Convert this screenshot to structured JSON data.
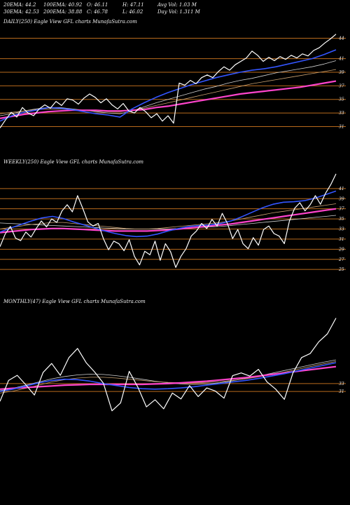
{
  "header": {
    "ema20": "20EMA: 44.2",
    "ema100": "100EMA: 40.92",
    "open": "O: 46.11",
    "high": "H: 47.11",
    "avg_vol": "Avg Vol: 1.03 M",
    "ema30": "30EMA: 42.53",
    "ema200": "200EMA: 38.88",
    "close": "C: 46.78",
    "low": "L: 46.02",
    "day_vol": "Day Vol: 1.311 M"
  },
  "colors": {
    "background": "#000000",
    "price": "#ffffff",
    "ema_fast": "#3355ff",
    "ema_slow": "#ff44cc",
    "ema_mid": "#c8a070",
    "ema_gray": "#cfcfcf",
    "level_line": "#b86a1c"
  },
  "chart_data": [
    {
      "type": "line",
      "title": "DAILY(250) Eagle  View  GFL  charts MunafaSutra.com",
      "ylim": [
        29.5,
        45.5
      ],
      "tick_labels": [
        "44",
        "41",
        "39",
        "37",
        "35",
        "33",
        "31"
      ],
      "levels": [
        44,
        41,
        39,
        37,
        35,
        33,
        31
      ],
      "series": [
        {
          "role": "price",
          "values": [
            30.8,
            32.0,
            33.1,
            32.4,
            33.8,
            33.0,
            32.6,
            33.6,
            34.2,
            33.7,
            34.7,
            34.1,
            35.1,
            34.9,
            34.3,
            35.2,
            35.8,
            35.3,
            34.5,
            35.1,
            34.2,
            33.6,
            34.4,
            33.3,
            33.0,
            33.8,
            33.2,
            32.3,
            32.9,
            31.8,
            32.6,
            31.5,
            37.4,
            37.1,
            37.8,
            37.3,
            38.2,
            38.6,
            38.2,
            39.1,
            39.8,
            39.3,
            40.1,
            40.6,
            41.1,
            42.1,
            41.5,
            40.6,
            41.2,
            40.7,
            41.3,
            40.9,
            41.5,
            41.1,
            41.7,
            41.4,
            42.2,
            42.6,
            43.3,
            43.9,
            44.6
          ]
        },
        {
          "role": "ema_fast",
          "values": [
            31.8,
            32.6,
            33.1,
            33.4,
            33.8,
            33.7,
            33.5,
            33.2,
            32.9,
            32.7,
            32.4,
            33.6,
            34.5,
            35.3,
            36.0,
            36.6,
            37.2,
            37.7,
            38.2,
            38.6,
            39.0,
            39.3,
            39.5,
            39.8,
            40.2,
            40.6,
            41.0,
            41.6,
            42.3
          ]
        },
        {
          "role": "ema_gray",
          "values": [
            32.6,
            32.9,
            33.3,
            33.6,
            33.8,
            33.8,
            33.6,
            33.4,
            33.2,
            33.0,
            32.9,
            33.3,
            33.9,
            34.5,
            35.0,
            35.5,
            36.0,
            36.5,
            36.9,
            37.4,
            37.8,
            38.1,
            38.5,
            38.9,
            39.2,
            39.5,
            39.8,
            40.2,
            40.7
          ]
        },
        {
          "role": "ema_mid",
          "values": [
            32.9,
            33.1,
            33.3,
            33.5,
            33.6,
            33.6,
            33.5,
            33.4,
            33.3,
            33.2,
            33.2,
            33.4,
            33.7,
            34.1,
            34.5,
            34.9,
            35.3,
            35.7,
            36.1,
            36.5,
            36.9,
            37.3,
            37.6,
            37.9,
            38.2,
            38.5,
            38.8,
            39.1,
            39.4
          ]
        },
        {
          "role": "ema_slow",
          "values": [
            32.2,
            32.5,
            32.8,
            33.0,
            33.2,
            33.3,
            33.4,
            33.4,
            33.4,
            33.3,
            33.3,
            33.4,
            33.5,
            33.8,
            34.0,
            34.3,
            34.6,
            34.9,
            35.2,
            35.5,
            35.8,
            36.0,
            36.2,
            36.4,
            36.6,
            36.8,
            37.1,
            37.4,
            37.7
          ]
        }
      ]
    },
    {
      "type": "line",
      "title": "WEEKLY(250) Eagle  View  GFL  charts MunafaSutra.com",
      "ylim": [
        23.5,
        45
      ],
      "tick_labels": [
        "41",
        "39",
        "37",
        "35",
        "33",
        "31",
        "29",
        "27",
        "25"
      ],
      "levels": [
        41,
        39,
        37,
        35,
        33,
        31,
        29,
        27,
        25
      ],
      "series": [
        {
          "role": "price",
          "values": [
            29.5,
            32.0,
            33.5,
            31.2,
            30.7,
            32.4,
            31.4,
            33.1,
            34.6,
            33.4,
            35.0,
            34.3,
            36.6,
            37.8,
            36.4,
            39.6,
            37.1,
            34.4,
            33.6,
            34.1,
            31.1,
            28.9,
            30.6,
            30.1,
            28.7,
            30.9,
            27.6,
            25.9,
            28.6,
            27.9,
            30.6,
            26.8,
            30.1,
            28.5,
            25.4,
            27.6,
            29.1,
            31.6,
            32.6,
            34.1,
            33.1,
            34.9,
            33.6,
            36.1,
            34.1,
            31.1,
            32.9,
            30.1,
            29.1,
            31.3,
            29.8,
            32.9,
            33.6,
            32.1,
            31.6,
            30.1,
            34.6,
            37.1,
            38.2,
            36.6,
            37.8,
            39.6,
            37.9,
            40.1,
            41.8,
            43.9
          ]
        },
        {
          "role": "ema_fast",
          "values": [
            32.4,
            33.2,
            33.9,
            34.6,
            35.2,
            35.5,
            35.1,
            34.4,
            33.8,
            33.2,
            32.6,
            32.1,
            31.7,
            31.5,
            31.6,
            32.0,
            32.6,
            33.1,
            33.5,
            33.7,
            33.8,
            34.1,
            34.6,
            35.4,
            36.3,
            37.2,
            37.9,
            38.3,
            38.4,
            38.6,
            39.1,
            39.8,
            40.5
          ]
        },
        {
          "role": "ema_mid",
          "values": [
            33.0,
            33.3,
            33.6,
            33.9,
            34.1,
            34.3,
            34.3,
            34.1,
            33.9,
            33.7,
            33.5,
            33.3,
            33.1,
            33.0,
            33.0,
            33.1,
            33.3,
            33.5,
            33.7,
            33.9,
            34.1,
            34.3,
            34.6,
            35.0,
            35.4,
            35.8,
            36.2,
            36.5,
            36.8,
            37.1,
            37.4,
            37.7,
            38.0
          ]
        },
        {
          "role": "ema_slow",
          "values": [
            32.3,
            32.5,
            32.7,
            32.9,
            33.0,
            33.1,
            33.1,
            33.0,
            32.9,
            32.8,
            32.7,
            32.6,
            32.6,
            32.6,
            32.6,
            32.7,
            32.8,
            33.0,
            33.2,
            33.4,
            33.6,
            33.8,
            34.0,
            34.3,
            34.6,
            34.9,
            35.2,
            35.5,
            35.8,
            36.1,
            36.4,
            36.7,
            37.0
          ]
        },
        {
          "role": "ema_gray",
          "values": [
            34.2,
            34.1,
            34.0,
            33.9,
            33.8,
            33.7,
            33.6,
            33.5,
            33.4,
            33.3,
            33.2,
            33.1,
            33.0,
            33.0,
            33.0,
            33.0,
            33.0,
            33.1,
            33.2,
            33.3,
            33.4,
            33.5,
            33.7,
            33.9,
            34.1,
            34.3,
            34.5,
            34.7,
            34.9,
            35.1,
            35.3,
            35.5,
            35.7
          ]
        }
      ]
    },
    {
      "type": "line",
      "title": "MONTHLY(47) Eagle  View  GFL  charts MunafaSutra.com",
      "ylim": [
        20,
        52
      ],
      "tick_labels": [
        "33",
        "31"
      ],
      "levels": [
        33,
        31
      ],
      "series": [
        {
          "role": "price",
          "values": [
            28.5,
            33.8,
            35.1,
            32.7,
            30.1,
            35.8,
            38.1,
            35.1,
            39.6,
            41.9,
            38.3,
            35.9,
            33.1,
            26.1,
            28.1,
            36.1,
            32.1,
            27.1,
            28.9,
            26.6,
            30.6,
            29.1,
            32.5,
            29.7,
            31.9,
            31.1,
            29.3,
            35.0,
            35.7,
            34.9,
            36.6,
            33.4,
            31.6,
            29.0,
            35.7,
            39.6,
            40.6,
            43.6,
            45.6,
            49.6
          ]
        },
        {
          "role": "ema_fast",
          "values": [
            31.0,
            31.6,
            32.4,
            33.2,
            33.8,
            34.1,
            34.0,
            33.6,
            33.0,
            32.5,
            32.0,
            31.7,
            31.6,
            31.7,
            31.9,
            32.2,
            32.6,
            33.0,
            33.4,
            33.8,
            34.3,
            34.9,
            35.5,
            36.2,
            36.9,
            37.6,
            38.3
          ]
        },
        {
          "role": "ema_mid",
          "values": [
            30.6,
            31.1,
            31.8,
            32.6,
            33.4,
            34.0,
            34.4,
            34.6,
            34.6,
            34.4,
            34.1,
            33.8,
            33.5,
            33.3,
            33.2,
            33.2,
            33.3,
            33.5,
            33.8,
            34.2,
            34.7,
            35.3,
            35.9,
            36.6,
            37.3,
            38.0,
            38.6
          ]
        },
        {
          "role": "ema_gray",
          "values": [
            31.2,
            31.8,
            32.6,
            33.4,
            34.2,
            34.8,
            35.2,
            35.4,
            35.3,
            35.0,
            34.6,
            34.1,
            33.6,
            33.2,
            32.9,
            32.8,
            32.9,
            33.2,
            33.7,
            34.3,
            34.9,
            35.6,
            36.3,
            37.0,
            37.7,
            38.4,
            39.0
          ]
        },
        {
          "role": "ema_slow",
          "values": [
            31.6,
            31.8,
            32.0,
            32.2,
            32.4,
            32.6,
            32.7,
            32.8,
            32.8,
            32.8,
            32.8,
            32.8,
            32.9,
            33.0,
            33.2,
            33.4,
            33.6,
            33.9,
            34.2,
            34.5,
            34.9,
            35.3,
            35.7,
            36.1,
            36.5,
            36.9,
            37.3
          ]
        }
      ]
    }
  ]
}
